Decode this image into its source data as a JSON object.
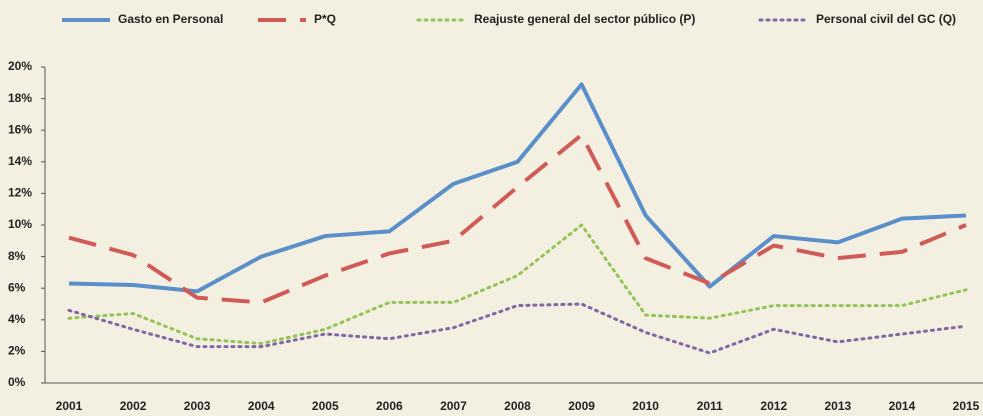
{
  "chart_data": {
    "type": "line",
    "categories": [
      "2001",
      "2002",
      "2003",
      "2004",
      "2005",
      "2006",
      "2007",
      "2008",
      "2009",
      "2010",
      "2011",
      "2012",
      "2013",
      "2014",
      "2015"
    ],
    "series": [
      {
        "name": "Gasto en Personal",
        "color": "#5b8fca",
        "dash": "solid",
        "values": [
          6.3,
          6.2,
          5.8,
          8.0,
          9.3,
          9.6,
          12.6,
          14.0,
          18.9,
          10.6,
          6.1,
          9.3,
          8.9,
          10.4,
          10.6
        ]
      },
      {
        "name": "P*Q",
        "color": "#d05a55",
        "dash": "dashed",
        "values": [
          9.2,
          8.1,
          5.4,
          5.1,
          6.8,
          8.2,
          9.0,
          12.4,
          15.7,
          7.9,
          6.3,
          8.7,
          7.9,
          8.3,
          10.0
        ]
      },
      {
        "name": "Reajuste general del sector público (P)",
        "color": "#92c456",
        "dash": "dotted",
        "values": [
          4.1,
          4.4,
          2.8,
          2.5,
          3.4,
          5.1,
          5.1,
          6.8,
          10.0,
          4.3,
          4.1,
          4.9,
          4.9,
          4.9,
          5.9
        ]
      },
      {
        "name": "Personal civil del GC (Q)",
        "color": "#8266a6",
        "dash": "dotted",
        "values": [
          4.6,
          3.4,
          2.3,
          2.3,
          3.1,
          2.8,
          3.5,
          4.9,
          5.0,
          3.2,
          1.9,
          3.4,
          2.6,
          3.1,
          3.6
        ]
      }
    ],
    "ylim": [
      0,
      20
    ],
    "yticks": [
      {
        "value": 0,
        "label": "0%"
      },
      {
        "value": 2,
        "label": "2%"
      },
      {
        "value": 4,
        "label": "4%"
      },
      {
        "value": 6,
        "label": "6%"
      },
      {
        "value": 8,
        "label": "8%"
      },
      {
        "value": 10,
        "label": "10%"
      },
      {
        "value": 12,
        "label": "12%"
      },
      {
        "value": 14,
        "label": "14%"
      },
      {
        "value": 16,
        "label": "16%"
      },
      {
        "value": 18,
        "label": "18%"
      },
      {
        "value": 20,
        "label": "20%"
      }
    ],
    "grid": false,
    "legend": "top"
  }
}
